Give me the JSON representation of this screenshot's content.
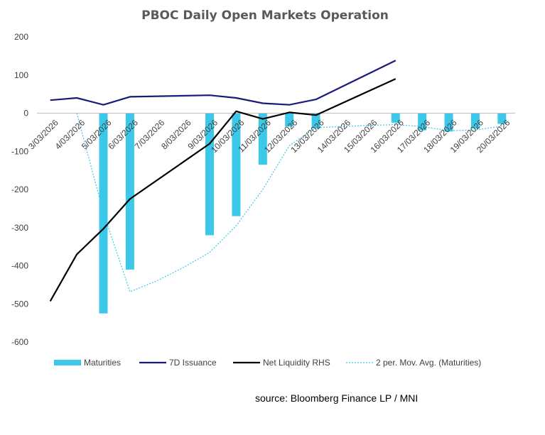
{
  "chart_data": {
    "type": "bar",
    "title": "PBOC Daily Open Markets Operation",
    "source": "source:  Bloomberg Finance LP / MNI",
    "categories": [
      "3/03/2026",
      "4/03/2026",
      "5/03/2026",
      "6/03/2026",
      "7/03/2026",
      "8/03/2026",
      "9/03/2026",
      "10/03/2026",
      "11/03/2026",
      "12/03/2026",
      "13/03/2026",
      "14/03/2026",
      "15/03/2026",
      "16/03/2026",
      "17/03/2026",
      "18/03/2026",
      "19/03/2026",
      "20/03/2026"
    ],
    "ylim": [
      -600,
      200
    ],
    "yticks": [
      200,
      100,
      0,
      -100,
      -200,
      -300,
      -400,
      -500,
      -600
    ],
    "series": [
      {
        "name": "Maturities",
        "kind": "bar",
        "color": "#3CC8E8",
        "values": [
          null,
          null,
          -525,
          -410,
          null,
          null,
          -320,
          -270,
          -135,
          -35,
          -40,
          null,
          null,
          -25,
          -45,
          -48,
          -40,
          -28
        ]
      },
      {
        "name": "7D Issuance",
        "kind": "line",
        "color": "#1A1A7A",
        "values": [
          34,
          40,
          22,
          43,
          null,
          null,
          47,
          40,
          26,
          22,
          36,
          null,
          null,
          138,
          null,
          null,
          null,
          null
        ]
      },
      {
        "name": "Net Liquidity RHS",
        "kind": "line",
        "color": "#000000",
        "values": [
          -493,
          -370,
          -303,
          -225,
          null,
          null,
          -80,
          5,
          -15,
          2,
          -5,
          null,
          null,
          90,
          null,
          null,
          null,
          null
        ]
      },
      {
        "name": "2 per. Mov. Avg. (Maturities)",
        "kind": "dotted",
        "color": "#3CC8E8",
        "values": [
          null,
          0,
          -260,
          -468,
          -440,
          -405,
          -365,
          -295,
          -200,
          -85,
          -38,
          -35,
          -32,
          -30,
          -35,
          -46,
          -44,
          -34
        ]
      }
    ],
    "legend": [
      "Maturities",
      "7D Issuance",
      "Net Liquidity RHS",
      "2 per. Mov. Avg. (Maturities)"
    ]
  }
}
